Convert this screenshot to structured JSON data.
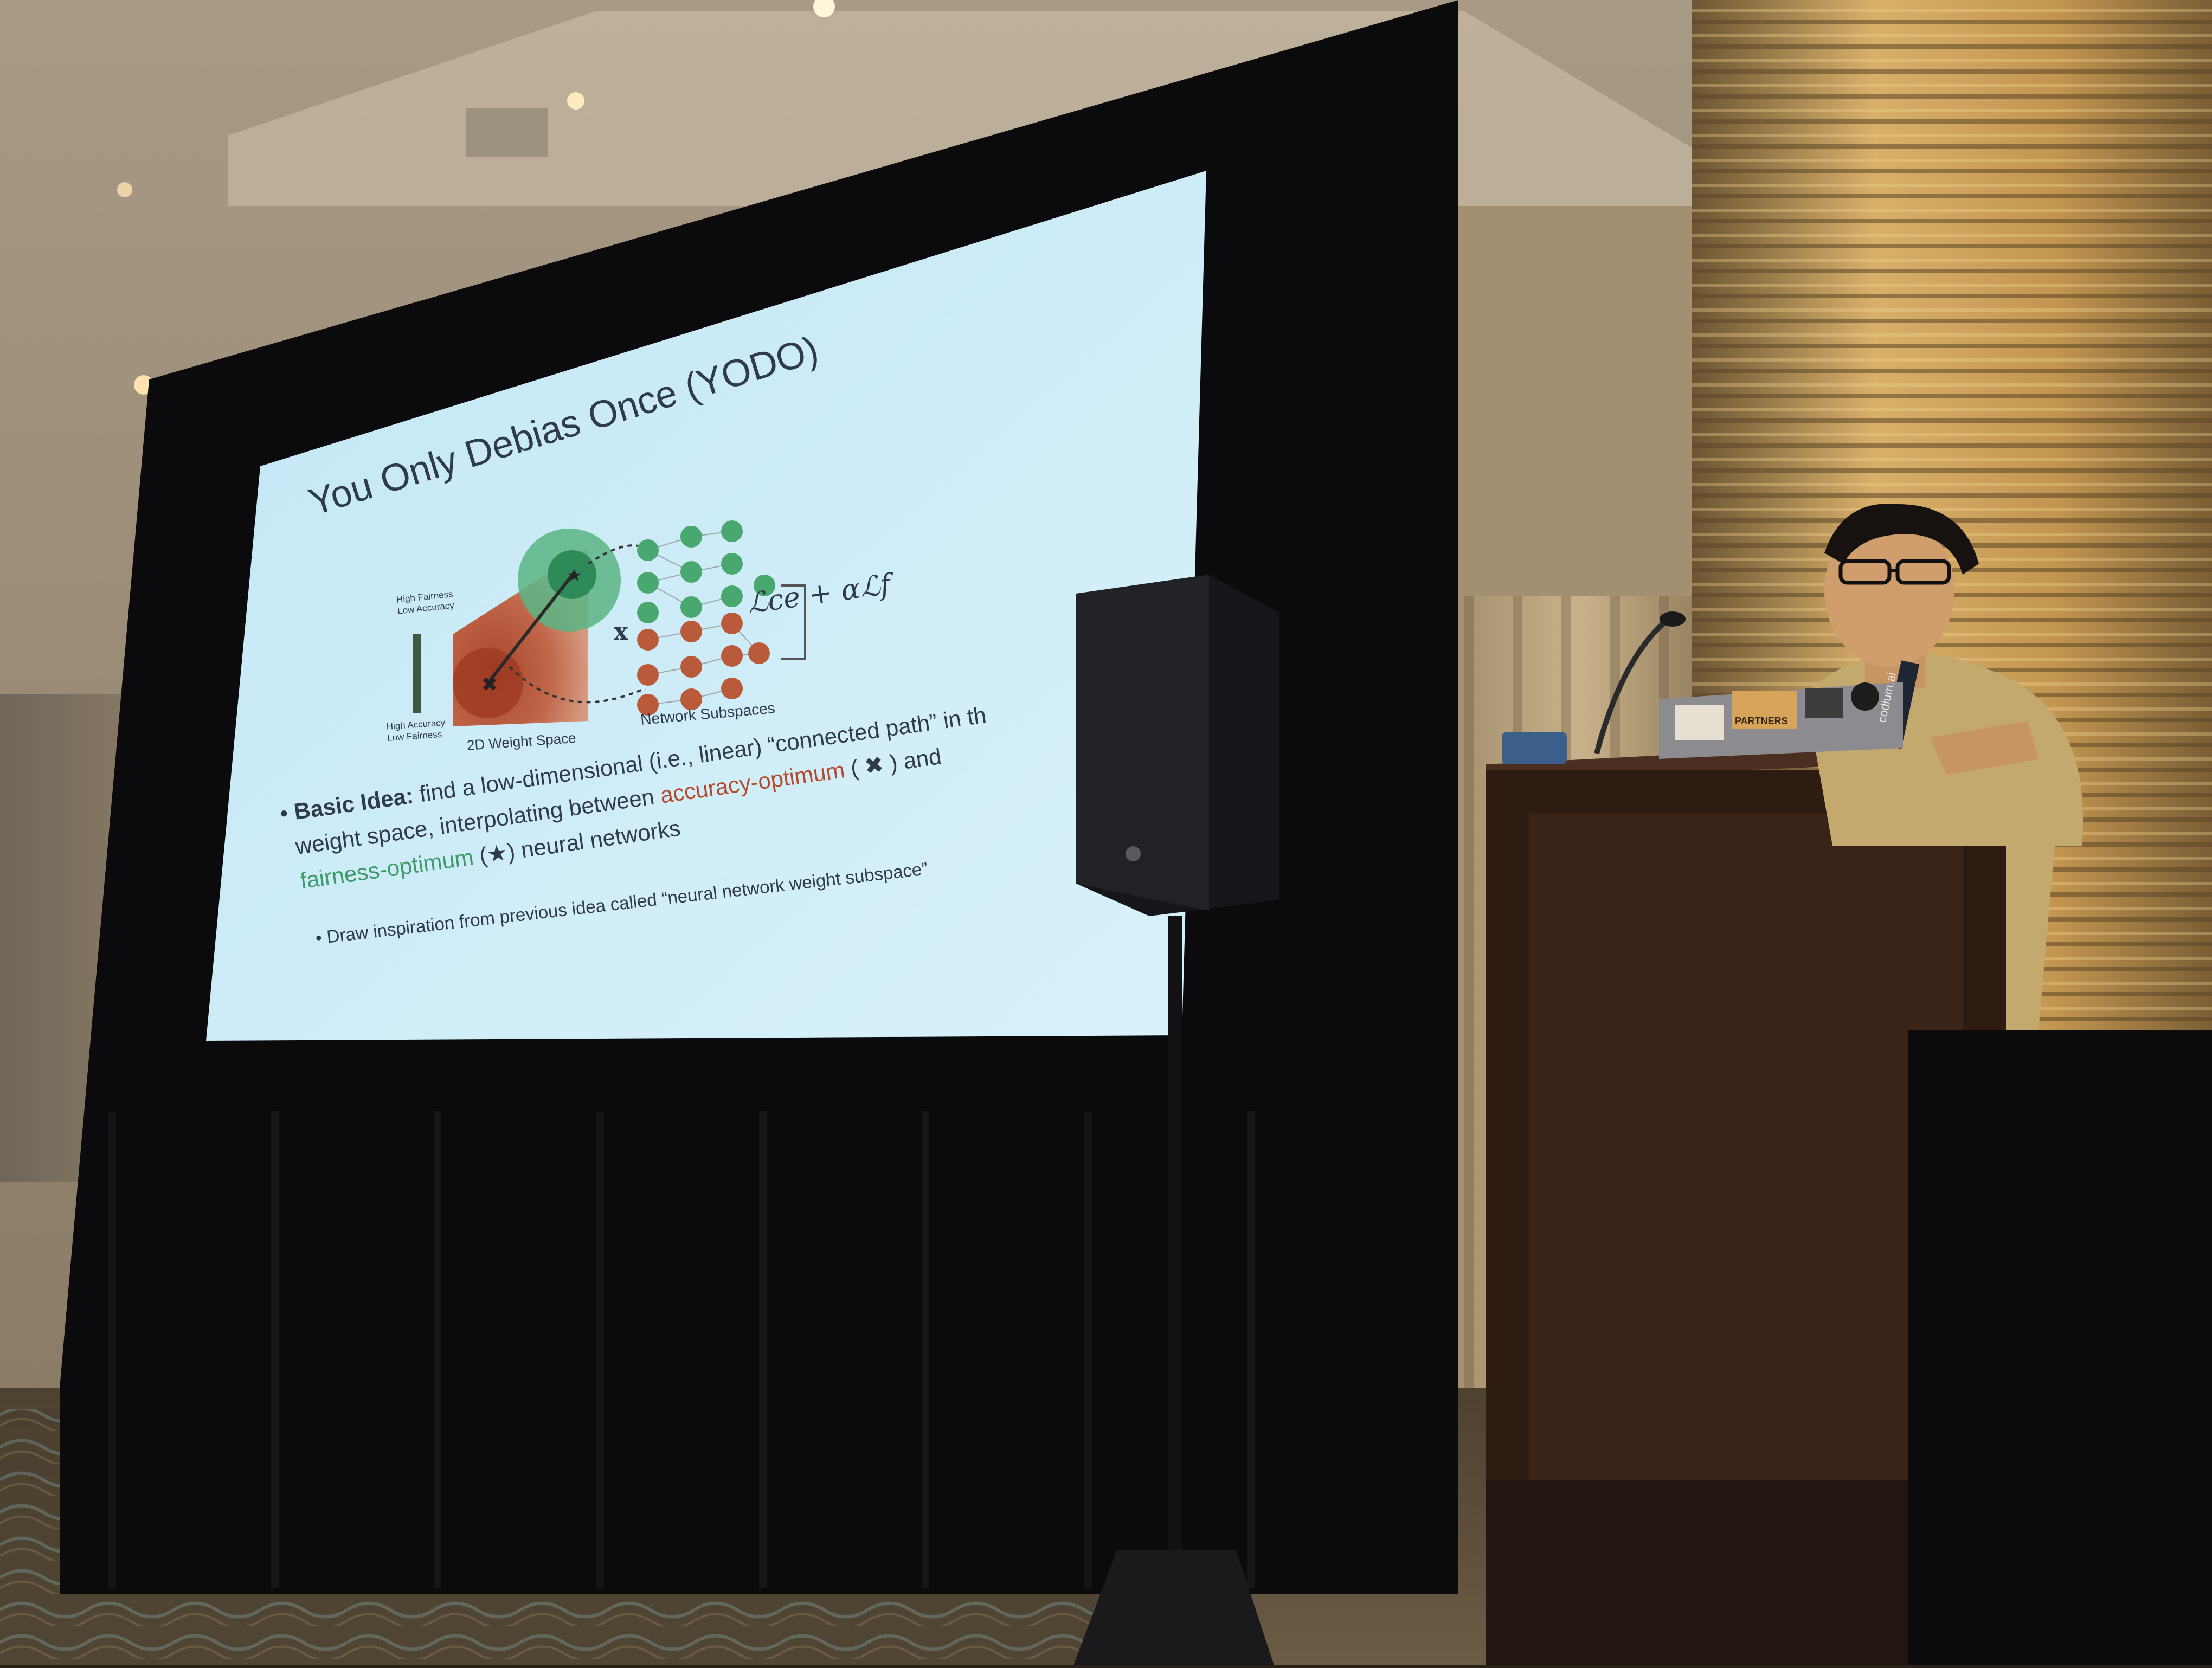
{
  "slide": {
    "title": "You Only Debias Once (YODO)",
    "diagram": {
      "high_fairness_low_accuracy": [
        "High Fairness",
        "Low Accuracy"
      ],
      "high_accuracy_low_fairness": [
        "High Accuracy",
        "Low Fairness"
      ],
      "weight_space_label": "2D Weight Space",
      "input_label": "x",
      "network_label": "Network Subspaces",
      "loss_formula": "ℒce + αℒf"
    },
    "bullets": [
      {
        "label": "Basic Idea:",
        "line1": "find a low-dimensional (i.e., linear) “connected path” in th",
        "line2_prefix": "weight space, interpolating between ",
        "accuracy_term": "accuracy-optimum",
        "line2_suffix": " ( ✖ ) and",
        "fairness_term": "fairness-optimum",
        "line3_suffix": " (★) neural networks"
      }
    ],
    "sub_bullet": "Draw inspiration from previous idea called “neural network weight subspace”",
    "colors": {
      "background": "#c9e9f6",
      "text": "#2f3a4a",
      "accuracy": "#b4492d",
      "fairness": "#3f9a6a"
    }
  },
  "badges": {
    "lanyard_text": "codium.ai",
    "laptop_sticker_1": "PARTNERS"
  }
}
